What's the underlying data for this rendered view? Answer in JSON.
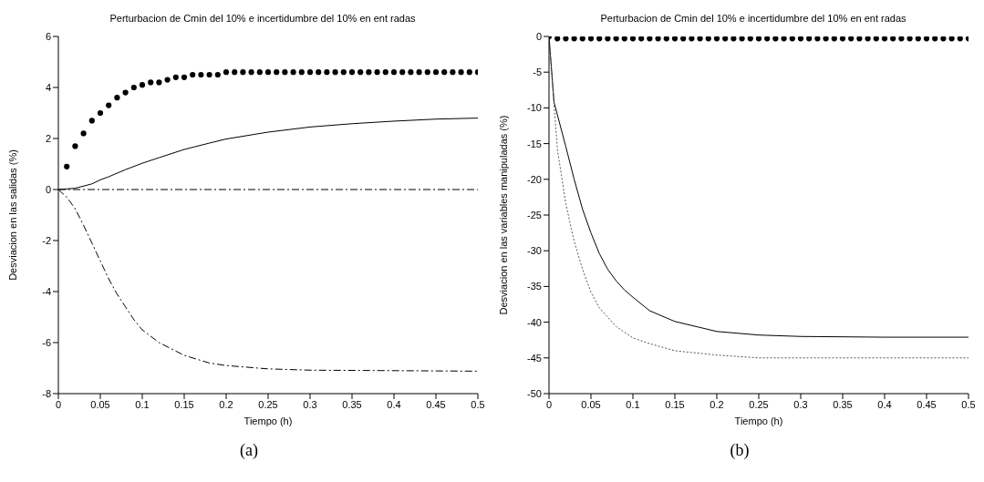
{
  "chart_data": [
    {
      "type": "line",
      "title": "Perturbacion de Cmin del 10% e incertidumbre del 10% en ent radas",
      "xlabel": "Tiempo (h)",
      "ylabel": "Desviacion en las salidas (%)",
      "annotations": [
        "(a)"
      ],
      "xlim": [
        0,
        0.5
      ],
      "xticks": [
        0,
        0.05,
        0.1,
        0.15,
        0.2,
        0.25,
        0.3,
        0.35,
        0.4,
        0.45,
        0.5
      ],
      "ylim": [
        -8,
        6
      ],
      "yticks": [
        -8,
        -6,
        -4,
        -2,
        0,
        2,
        4,
        6
      ],
      "series": [
        {
          "type": "scatter",
          "marker": "circle",
          "color": "#000000",
          "x": [
            0.01,
            0.02,
            0.03,
            0.04,
            0.05,
            0.06,
            0.07,
            0.08,
            0.09,
            0.1,
            0.11,
            0.12,
            0.13,
            0.14,
            0.15,
            0.16,
            0.17,
            0.18,
            0.19,
            0.2,
            0.21,
            0.22,
            0.23,
            0.24,
            0.25,
            0.26,
            0.27,
            0.28,
            0.29,
            0.3,
            0.31,
            0.32,
            0.33,
            0.34,
            0.35,
            0.36,
            0.37,
            0.38,
            0.39,
            0.4,
            0.41,
            0.42,
            0.43,
            0.44,
            0.45,
            0.46,
            0.47,
            0.48,
            0.49,
            0.5
          ],
          "values": [
            0.9,
            1.7,
            2.2,
            2.7,
            3.0,
            3.3,
            3.6,
            3.8,
            4.0,
            4.1,
            4.2,
            4.2,
            4.3,
            4.4,
            4.4,
            4.5,
            4.5,
            4.5,
            4.5,
            4.6,
            4.6,
            4.6,
            4.6,
            4.6,
            4.6,
            4.6,
            4.6,
            4.6,
            4.6,
            4.6,
            4.6,
            4.6,
            4.6,
            4.6,
            4.6,
            4.6,
            4.6,
            4.6,
            4.6,
            4.6,
            4.6,
            4.6,
            4.6,
            4.6,
            4.6,
            4.6,
            4.6,
            4.6,
            4.6,
            4.6
          ]
        },
        {
          "line_style": "solid",
          "color": "#000000",
          "x": [
            0,
            0.02,
            0.04,
            0.05,
            0.06,
            0.08,
            0.1,
            0.12,
            0.15,
            0.18,
            0.2,
            0.25,
            0.3,
            0.35,
            0.4,
            0.45,
            0.5
          ],
          "values": [
            0,
            0.05,
            0.22,
            0.38,
            0.5,
            0.78,
            1.03,
            1.25,
            1.57,
            1.82,
            1.98,
            2.25,
            2.45,
            2.58,
            2.68,
            2.76,
            2.8
          ]
        },
        {
          "line_style": "dashed",
          "color": "#000000",
          "x": [
            0,
            0.5
          ],
          "values": [
            0,
            0
          ]
        },
        {
          "line_style": "dashed",
          "color": "#000000",
          "x": [
            0,
            0.01,
            0.02,
            0.03,
            0.04,
            0.05,
            0.06,
            0.07,
            0.08,
            0.09,
            0.1,
            0.12,
            0.15,
            0.18,
            0.2,
            0.25,
            0.3,
            0.4,
            0.5
          ],
          "values": [
            0,
            -0.3,
            -0.75,
            -1.4,
            -2.1,
            -2.8,
            -3.5,
            -4.1,
            -4.6,
            -5.1,
            -5.5,
            -6.0,
            -6.5,
            -6.8,
            -6.9,
            -7.03,
            -7.08,
            -7.1,
            -7.12
          ]
        }
      ]
    },
    {
      "type": "line",
      "title": "Perturbacion de Cmin del 10% e incertidumbre del 10% en ent radas",
      "xlabel": "Tiempo (h)",
      "ylabel": "Desviacion en las variables manipuladas (%)",
      "annotations": [
        "(b)"
      ],
      "xlim": [
        0,
        0.5
      ],
      "xticks": [
        0,
        0.05,
        0.1,
        0.15,
        0.2,
        0.25,
        0.3,
        0.35,
        0.4,
        0.45,
        0.5
      ],
      "ylim": [
        -50,
        0
      ],
      "yticks": [
        -50,
        -45,
        -40,
        -35,
        -30,
        -25,
        -20,
        -15,
        -10,
        -5,
        0
      ],
      "series": [
        {
          "type": "scatter",
          "marker": "circle",
          "color": "#000000",
          "x": [
            0,
            0.01,
            0.02,
            0.03,
            0.04,
            0.05,
            0.06,
            0.07,
            0.08,
            0.09,
            0.1,
            0.11,
            0.12,
            0.13,
            0.14,
            0.15,
            0.16,
            0.17,
            0.18,
            0.19,
            0.2,
            0.21,
            0.22,
            0.23,
            0.24,
            0.25,
            0.26,
            0.27,
            0.28,
            0.29,
            0.3,
            0.31,
            0.32,
            0.33,
            0.34,
            0.35,
            0.36,
            0.37,
            0.38,
            0.39,
            0.4,
            0.41,
            0.42,
            0.43,
            0.44,
            0.45,
            0.46,
            0.47,
            0.48,
            0.49,
            0.5
          ],
          "values": [
            0,
            -0.3,
            -0.3,
            -0.3,
            -0.3,
            -0.3,
            -0.3,
            -0.3,
            -0.3,
            -0.3,
            -0.3,
            -0.3,
            -0.3,
            -0.3,
            -0.3,
            -0.3,
            -0.3,
            -0.3,
            -0.3,
            -0.3,
            -0.3,
            -0.3,
            -0.3,
            -0.3,
            -0.3,
            -0.3,
            -0.3,
            -0.3,
            -0.3,
            -0.3,
            -0.3,
            -0.3,
            -0.3,
            -0.3,
            -0.3,
            -0.3,
            -0.3,
            -0.3,
            -0.3,
            -0.3,
            -0.3,
            -0.3,
            -0.3,
            -0.3,
            -0.3,
            -0.3,
            -0.3,
            -0.3,
            -0.3,
            -0.3,
            -0.3
          ]
        },
        {
          "line_style": "solid",
          "color": "#000000",
          "x": [
            0,
            0.006,
            0.02,
            0.03,
            0.04,
            0.05,
            0.06,
            0.07,
            0.08,
            0.09,
            0.1,
            0.12,
            0.15,
            0.2,
            0.25,
            0.3,
            0.4,
            0.5
          ],
          "values": [
            0,
            -9.2,
            -15.4,
            -20,
            -24.2,
            -27.5,
            -30.4,
            -32.6,
            -34.2,
            -35.5,
            -36.5,
            -38.4,
            -39.9,
            -41.3,
            -41.8,
            -42,
            -42.1,
            -42.1
          ]
        },
        {
          "line_style": "dotted",
          "color": "#555555",
          "x": [
            0,
            0.005,
            0.01,
            0.02,
            0.03,
            0.04,
            0.05,
            0.06,
            0.08,
            0.1,
            0.12,
            0.15,
            0.2,
            0.25,
            0.3,
            0.4,
            0.5
          ],
          "values": [
            0,
            -8,
            -15.8,
            -23.4,
            -28.7,
            -32.6,
            -35.8,
            -38,
            -40.6,
            -42.2,
            -43,
            -44,
            -44.6,
            -45,
            -45,
            -45,
            -45
          ]
        }
      ]
    }
  ]
}
